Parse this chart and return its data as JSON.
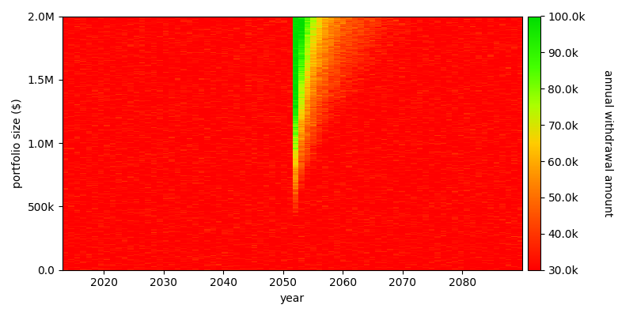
{
  "year_start": 2013,
  "year_end": 2091,
  "portfolio_min": 0,
  "portfolio_max": 2000000,
  "withdrawal_min": 30000,
  "withdrawal_max": 100000,
  "retirement_year": 2052,
  "withdrawal_rate": 0.05,
  "xlabel": "year",
  "ylabel": "portfolio size ($)",
  "colorbar_label": "annual withdrawal amount",
  "colorbar_ticks": [
    30000,
    40000,
    50000,
    60000,
    70000,
    80000,
    90000,
    100000
  ],
  "colorbar_ticklabels": [
    "30.0k",
    "40.0k",
    "50.0k",
    "60.0k",
    "70.0k",
    "80.0k",
    "90.0k",
    "100.0k"
  ],
  "yticks": [
    0,
    500000,
    1000000,
    1500000,
    2000000
  ],
  "ytick_labels": [
    "0.0",
    "500k",
    "1.0M",
    "1.5M",
    "2.0M"
  ],
  "xticks": [
    2020,
    2030,
    2040,
    2050,
    2060,
    2070,
    2080
  ],
  "figsize": [
    8.0,
    4.0
  ],
  "dpi": 100,
  "background_color": "#ffffff",
  "noise_amplitude": 3000,
  "cmap_colors": [
    [
      0.0,
      "#ff0000"
    ],
    [
      0.18,
      "#ff4400"
    ],
    [
      0.35,
      "#ff8800"
    ],
    [
      0.5,
      "#ffcc00"
    ],
    [
      0.65,
      "#aaff00"
    ],
    [
      0.8,
      "#44ff00"
    ],
    [
      1.0,
      "#00dd00"
    ]
  ]
}
